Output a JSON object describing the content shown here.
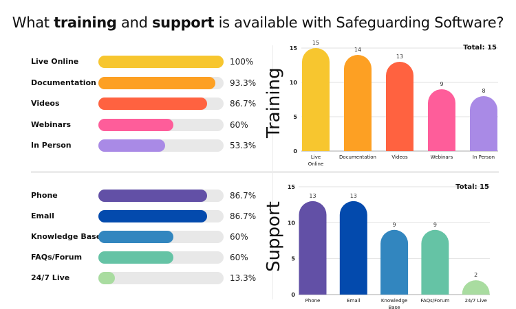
{
  "title": {
    "prefix": "What ",
    "bold1": "training",
    "mid": " and ",
    "bold2": "support",
    "suffix": " is available with Safeguarding Software?"
  },
  "training_progress": [
    {
      "label": "Live Online",
      "percent": 100,
      "display": "100%",
      "color": "#F7C62F"
    },
    {
      "label": "Documentation",
      "percent": 93.3,
      "display": "93.3%",
      "color": "#FDA023"
    },
    {
      "label": "Videos",
      "percent": 86.7,
      "display": "86.7%",
      "color": "#FF6240"
    },
    {
      "label": "Webinars",
      "percent": 60,
      "display": "60%",
      "color": "#FE5D9A"
    },
    {
      "label": "In Person",
      "percent": 53.3,
      "display": "53.3%",
      "color": "#A98AE6"
    }
  ],
  "support_progress": [
    {
      "label": "Phone",
      "percent": 86.7,
      "display": "86.7%",
      "color": "#6250A6"
    },
    {
      "label": "Email",
      "percent": 86.7,
      "display": "86.7%",
      "color": "#034AAD"
    },
    {
      "label": "Knowledge Base",
      "percent": 60,
      "display": "60%",
      "color": "#3286BF"
    },
    {
      "label": "FAQs/Forum",
      "percent": 60,
      "display": "60%",
      "color": "#65C3A5"
    },
    {
      "label": "24/7 Live",
      "percent": 13.3,
      "display": "13.3%",
      "color": "#A9DCA0"
    }
  ],
  "chart_data": [
    {
      "type": "bar",
      "title": "Training",
      "annotation": "Total: 15",
      "categories": [
        "Live Online",
        "Documentation",
        "Videos",
        "Webinars",
        "In Person"
      ],
      "category_lines": [
        [
          "Live",
          "Online"
        ],
        [
          "Documentation"
        ],
        [
          "Videos"
        ],
        [
          "Webinars"
        ],
        [
          "In Person"
        ]
      ],
      "values": [
        15,
        14,
        13,
        9,
        8
      ],
      "colors": [
        "#F7C62F",
        "#FDA023",
        "#FF6240",
        "#FE5D9A",
        "#A98AE6"
      ],
      "ylim": [
        0,
        15
      ],
      "yticks": [
        0,
        5,
        10,
        15
      ],
      "grid": true,
      "xlabel": "",
      "ylabel": ""
    },
    {
      "type": "bar",
      "title": "Support",
      "annotation": "Total: 15",
      "categories": [
        "Phone",
        "Email",
        "Knowledge Base",
        "FAQs/Forum",
        "24/7 Live"
      ],
      "category_lines": [
        [
          "Phone"
        ],
        [
          "Email"
        ],
        [
          "Knowledge",
          "Base"
        ],
        [
          "FAQs/Forum"
        ],
        [
          "24/7 Live"
        ]
      ],
      "values": [
        13,
        13,
        9,
        9,
        2
      ],
      "colors": [
        "#6250A6",
        "#034AAD",
        "#3286BF",
        "#65C3A5",
        "#A9DCA0"
      ],
      "ylim": [
        0,
        15
      ],
      "yticks": [
        0,
        5,
        10,
        15
      ],
      "grid": true,
      "xlabel": "",
      "ylabel": ""
    }
  ]
}
